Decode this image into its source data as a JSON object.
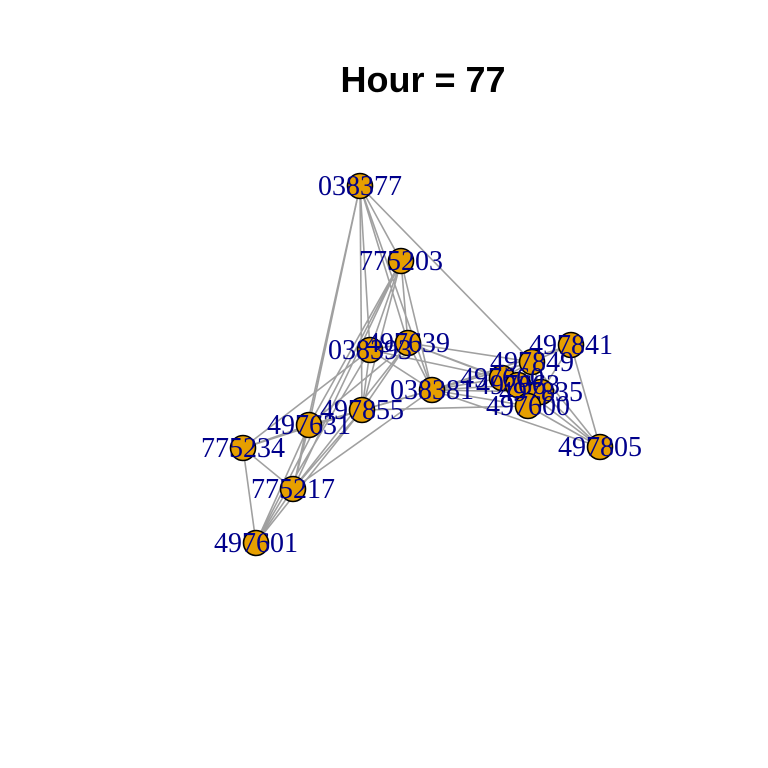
{
  "title": "Hour = 77",
  "colors": {
    "background": "#ffffff",
    "node_fill": "#e69f00",
    "node_stroke": "#000000",
    "edge": "#a0a0a0",
    "label": "#00008b",
    "title": "#000000"
  },
  "network": {
    "nodes": [
      {
        "id": "038377"
      },
      {
        "id": "775203"
      },
      {
        "id": "038393"
      },
      {
        "id": "497639"
      },
      {
        "id": "497841"
      },
      {
        "id": "497849"
      },
      {
        "id": "038381"
      },
      {
        "id": "497660"
      },
      {
        "id": "497835"
      },
      {
        "id": "497663"
      },
      {
        "id": "497600"
      },
      {
        "id": "497855"
      },
      {
        "id": "497631"
      },
      {
        "id": "775234"
      },
      {
        "id": "497805"
      },
      {
        "id": "775217"
      },
      {
        "id": "497601"
      }
    ],
    "edges": [
      [
        "038377",
        "775203"
      ],
      [
        "038377",
        "038393"
      ],
      [
        "038377",
        "497639"
      ],
      [
        "038377",
        "497855"
      ],
      [
        "038377",
        "775217"
      ],
      [
        "038377",
        "038381"
      ],
      [
        "038377",
        "497849"
      ],
      [
        "038377",
        "497631"
      ],
      [
        "775203",
        "038393"
      ],
      [
        "775203",
        "497639"
      ],
      [
        "775203",
        "497855"
      ],
      [
        "775203",
        "038381"
      ],
      [
        "775203",
        "775217"
      ],
      [
        "775203",
        "497631"
      ],
      [
        "775203",
        "497601"
      ],
      [
        "038393",
        "497639"
      ],
      [
        "038393",
        "497855"
      ],
      [
        "038393",
        "775234"
      ],
      [
        "038393",
        "497601"
      ],
      [
        "038393",
        "038381"
      ],
      [
        "038393",
        "497660"
      ],
      [
        "497639",
        "497855"
      ],
      [
        "497639",
        "497631"
      ],
      [
        "497639",
        "775217"
      ],
      [
        "497639",
        "497849"
      ],
      [
        "497639",
        "038381"
      ],
      [
        "497639",
        "497660"
      ],
      [
        "497639",
        "497663"
      ],
      [
        "497855",
        "497631"
      ],
      [
        "497855",
        "775217"
      ],
      [
        "497855",
        "497601"
      ],
      [
        "497855",
        "038381"
      ],
      [
        "497855",
        "497849"
      ],
      [
        "497855",
        "775234"
      ],
      [
        "497631",
        "775234"
      ],
      [
        "497631",
        "775217"
      ],
      [
        "497631",
        "497601"
      ],
      [
        "775234",
        "775217"
      ],
      [
        "775234",
        "497601"
      ],
      [
        "775217",
        "497601"
      ],
      [
        "775217",
        "038381"
      ],
      [
        "038381",
        "497849"
      ],
      [
        "038381",
        "497660"
      ],
      [
        "038381",
        "497835"
      ],
      [
        "038381",
        "497663"
      ],
      [
        "038381",
        "497600"
      ],
      [
        "038381",
        "497805"
      ],
      [
        "038381",
        "497841"
      ],
      [
        "497849",
        "497660"
      ],
      [
        "497849",
        "497835"
      ],
      [
        "497849",
        "497663"
      ],
      [
        "497849",
        "497600"
      ],
      [
        "497849",
        "497841"
      ],
      [
        "497849",
        "497805"
      ],
      [
        "497660",
        "497835"
      ],
      [
        "497660",
        "497663"
      ],
      [
        "497660",
        "497600"
      ],
      [
        "497835",
        "497663"
      ],
      [
        "497835",
        "497600"
      ],
      [
        "497835",
        "497841"
      ],
      [
        "497835",
        "497805"
      ],
      [
        "497663",
        "497600"
      ],
      [
        "497600",
        "497805"
      ],
      [
        "497841",
        "497805"
      ],
      [
        "497663",
        "497805"
      ],
      [
        "497600",
        "497855"
      ]
    ]
  }
}
